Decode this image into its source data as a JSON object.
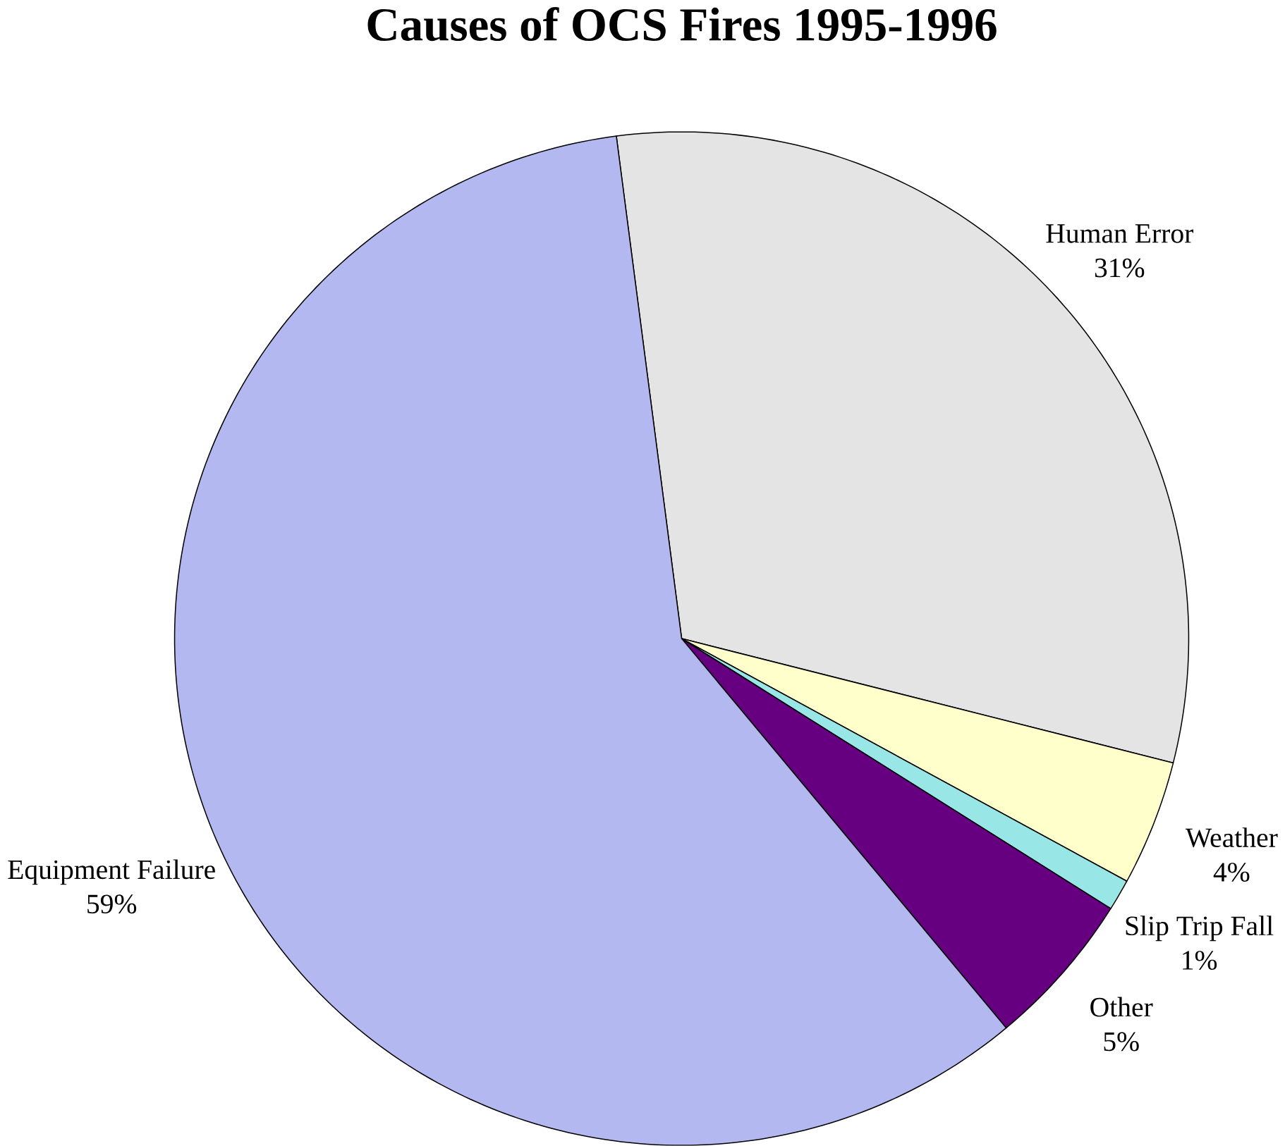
{
  "chart_data": {
    "type": "pie",
    "title": "Causes of OCS Fires 1995-1996",
    "categories": [
      "Human Error",
      "Weather",
      "Slip Trip Fall",
      "Other",
      "Equipment Failure"
    ],
    "values": [
      31,
      4,
      1,
      5,
      59
    ],
    "value_labels": [
      "31%",
      "4%",
      "1%",
      "5%",
      "59%"
    ],
    "colors": [
      "#e4e4e4",
      "#ffffcc",
      "#99e6e6",
      "#660080",
      "#b4b8f0"
    ],
    "legend": false
  }
}
